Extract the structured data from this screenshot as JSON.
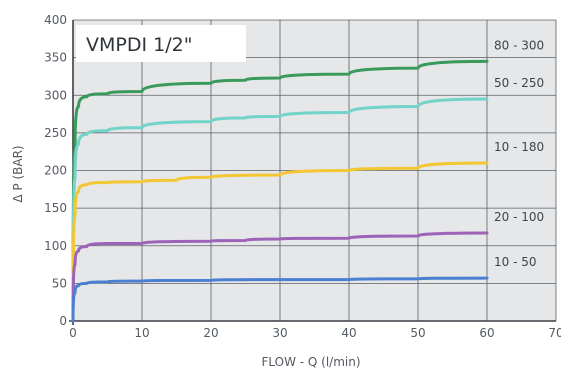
{
  "chart_data": {
    "type": "line",
    "title": "VMPDI 1/2\"",
    "xlabel": "FLOW - Q (l/min)",
    "ylabel": "Δ  P (BAR)",
    "xlim": [
      0,
      70
    ],
    "ylim": [
      0,
      400
    ],
    "xticks": [
      0,
      10,
      20,
      30,
      40,
      50,
      60,
      70
    ],
    "yticks": [
      0,
      50,
      100,
      150,
      200,
      250,
      300,
      350,
      400
    ],
    "grid": true,
    "legend": "labels at right end of each curve",
    "series": [
      {
        "name": "80 - 300",
        "color": "#3a9a5c",
        "points": [
          [
            0,
            0
          ],
          [
            0.3,
            230
          ],
          [
            0.8,
            285
          ],
          [
            2,
            298
          ],
          [
            5,
            302
          ],
          [
            10,
            305
          ],
          [
            20,
            316
          ],
          [
            25,
            320
          ],
          [
            30,
            323
          ],
          [
            40,
            328
          ],
          [
            50,
            336
          ],
          [
            60,
            345
          ]
        ]
      },
      {
        "name": "50 - 250",
        "color": "#72d3c8",
        "points": [
          [
            0,
            0
          ],
          [
            0.3,
            190
          ],
          [
            0.8,
            235
          ],
          [
            2,
            248
          ],
          [
            5,
            253
          ],
          [
            10,
            257
          ],
          [
            20,
            265
          ],
          [
            25,
            270
          ],
          [
            30,
            272
          ],
          [
            40,
            277
          ],
          [
            50,
            285
          ],
          [
            60,
            295
          ]
        ]
      },
      {
        "name": "10 - 180",
        "color": "#f2c731",
        "points": [
          [
            0,
            0
          ],
          [
            0.3,
            140
          ],
          [
            0.8,
            172
          ],
          [
            2,
            181
          ],
          [
            5,
            184
          ],
          [
            10,
            185
          ],
          [
            15,
            187
          ],
          [
            20,
            191
          ],
          [
            30,
            194
          ],
          [
            40,
            200
          ],
          [
            50,
            203
          ],
          [
            60,
            210
          ]
        ]
      },
      {
        "name": "20 - 100",
        "color": "#9c63b8",
        "points": [
          [
            0,
            0
          ],
          [
            0.3,
            75
          ],
          [
            0.8,
            93
          ],
          [
            2,
            99
          ],
          [
            5,
            103
          ],
          [
            10,
            103
          ],
          [
            20,
            106
          ],
          [
            25,
            107
          ],
          [
            30,
            109
          ],
          [
            40,
            110
          ],
          [
            50,
            113
          ],
          [
            60,
            117
          ]
        ]
      },
      {
        "name": "10 - 50",
        "color": "#4a7fd1",
        "points": [
          [
            0,
            0
          ],
          [
            0.3,
            38
          ],
          [
            0.8,
            47
          ],
          [
            2,
            50
          ],
          [
            5,
            52
          ],
          [
            10,
            53
          ],
          [
            20,
            54
          ],
          [
            30,
            55
          ],
          [
            40,
            55
          ],
          [
            50,
            56
          ],
          [
            60,
            57
          ]
        ]
      }
    ],
    "label_offsets_note": ""
  }
}
